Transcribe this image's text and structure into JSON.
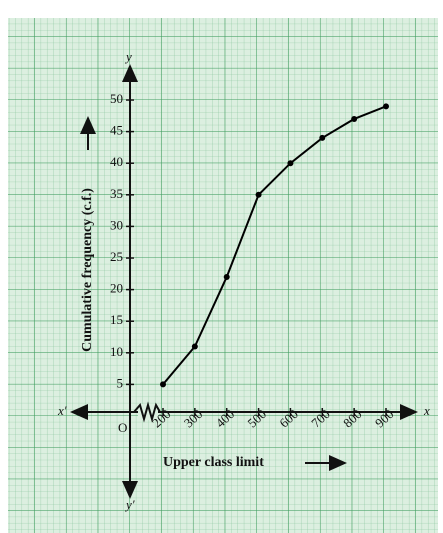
{
  "chart_data": {
    "type": "line",
    "x_label": "Upper class limit",
    "y_label": "Cumulative frequency (c.f.)",
    "origin_label": "O",
    "axis_letters": {
      "x_pos": "x",
      "x_neg": "x′",
      "y_pos": "y",
      "y_neg": "y′"
    },
    "x": [
      200,
      300,
      400,
      500,
      600,
      700,
      800,
      900
    ],
    "series": [
      {
        "name": "c.f.",
        "color": "#000000",
        "values": [
          5,
          11,
          22,
          35,
          40,
          44,
          47,
          49
        ]
      }
    ],
    "xlim": [
      200,
      900
    ],
    "xticks": [
      200,
      300,
      400,
      500,
      600,
      700,
      800,
      900
    ],
    "ylim": [
      0,
      50
    ],
    "yticks": [
      5,
      10,
      15,
      20,
      25,
      30,
      35,
      40,
      45,
      50
    ],
    "grid": true
  }
}
